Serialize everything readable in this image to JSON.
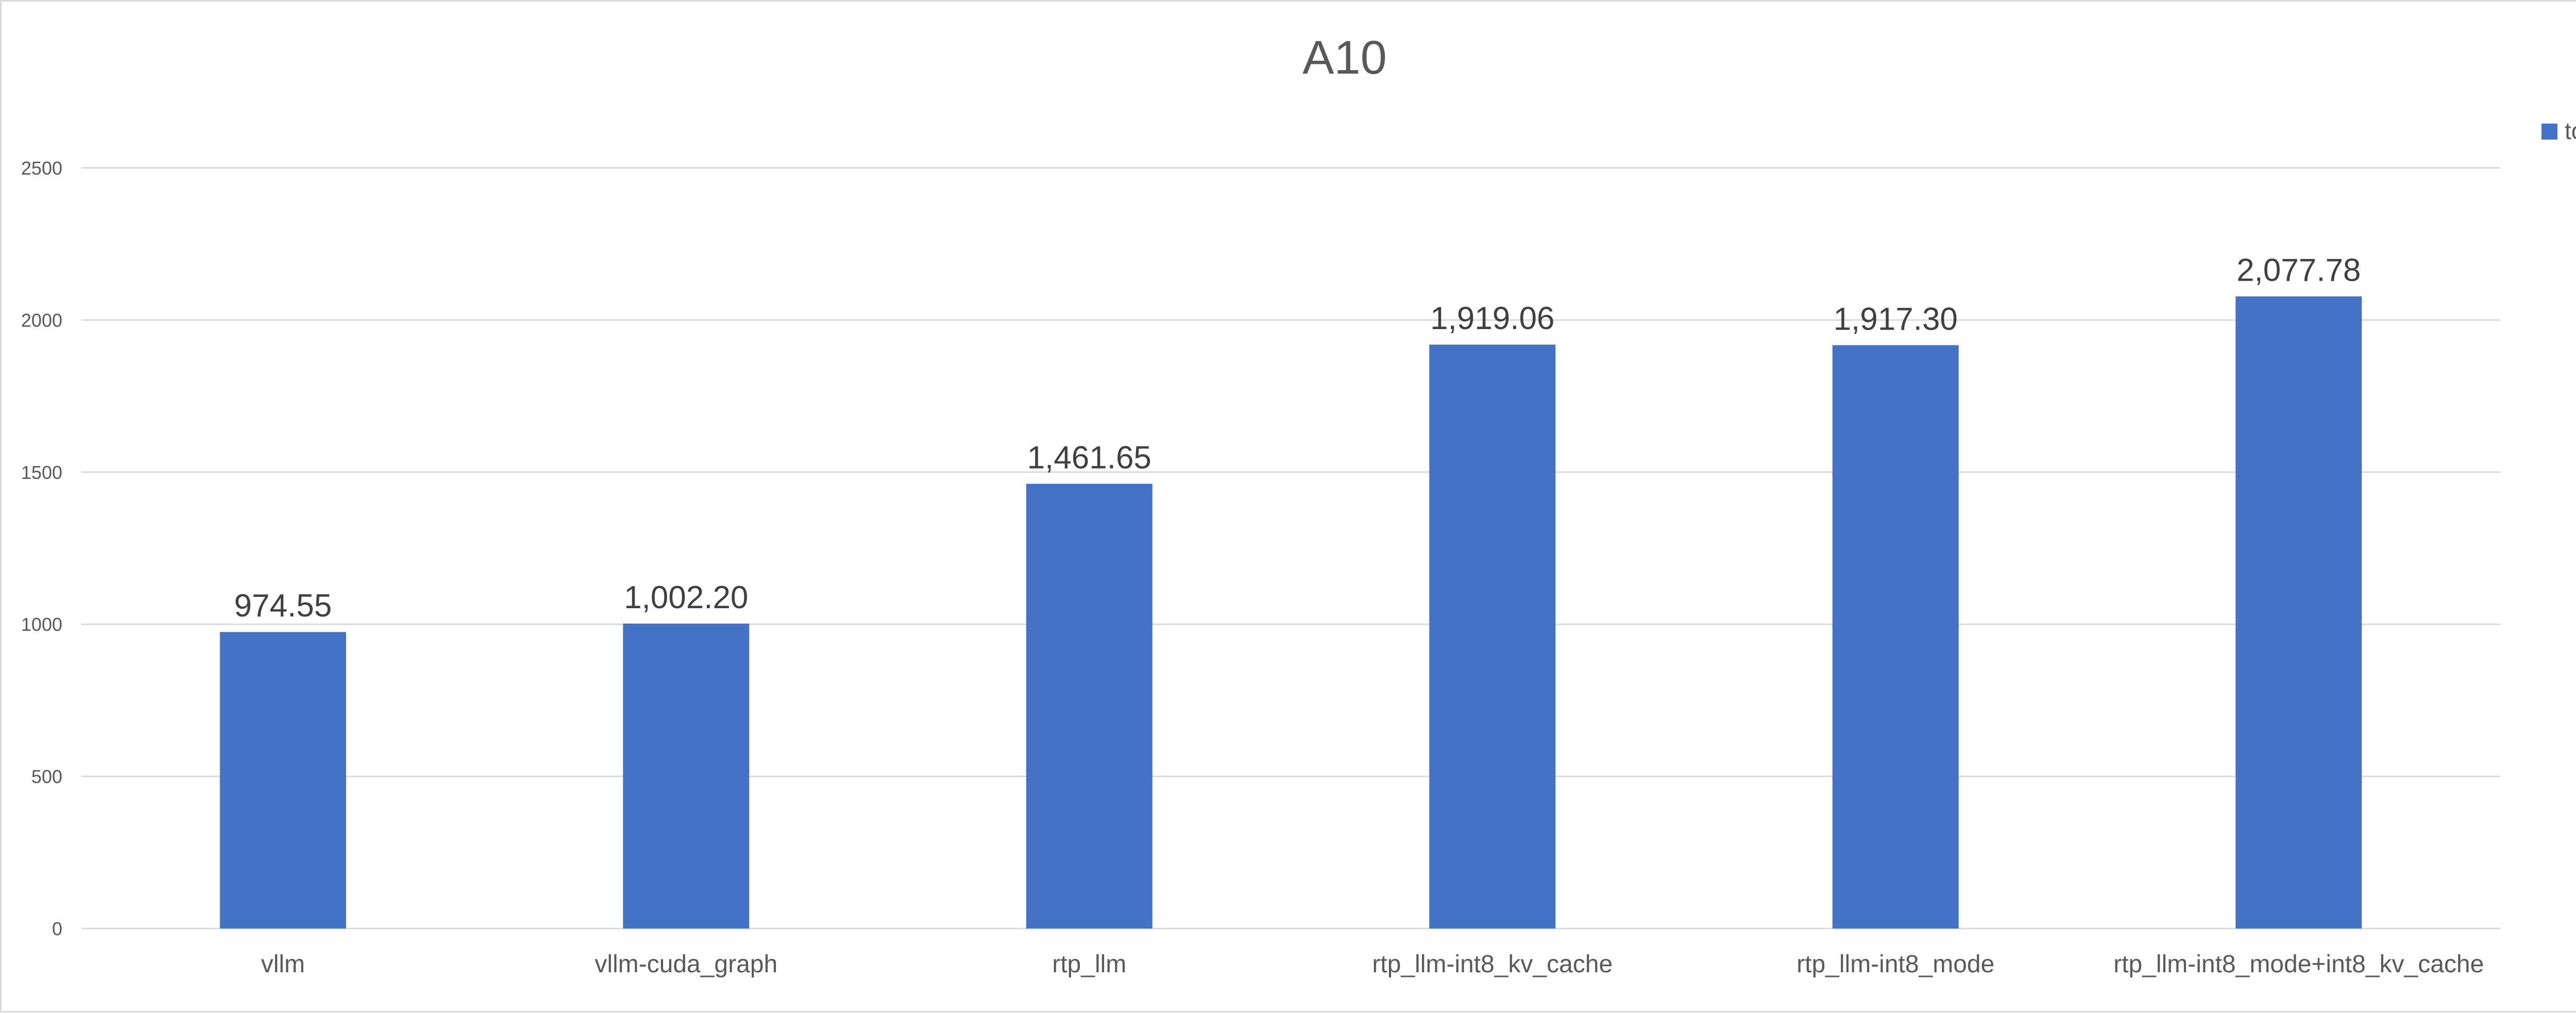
{
  "chart_data": {
    "type": "bar",
    "title": "A10",
    "xlabel": "",
    "ylabel": "",
    "categories": [
      "vllm",
      "vllm-cuda_graph",
      "rtp_llm",
      "rtp_llm-int8_kv_cache",
      "rtp_llm-int8_mode",
      "rtp_llm-int8_mode+int8_kv_cache"
    ],
    "series": [
      {
        "name": "tokens/s",
        "color": "#4472c4",
        "values": [
          974.55,
          1002.2,
          1461.65,
          1919.06,
          1917.3,
          2077.78
        ],
        "labels": [
          "974.55",
          "1,002.20",
          "1,461.65",
          "1,919.06",
          "1,917.30",
          "2,077.78"
        ]
      }
    ],
    "ylim": [
      0,
      2500
    ],
    "yticks": [
      0,
      500,
      1000,
      1500,
      2000,
      2500
    ],
    "grid": true,
    "legend_position": "top-right"
  }
}
